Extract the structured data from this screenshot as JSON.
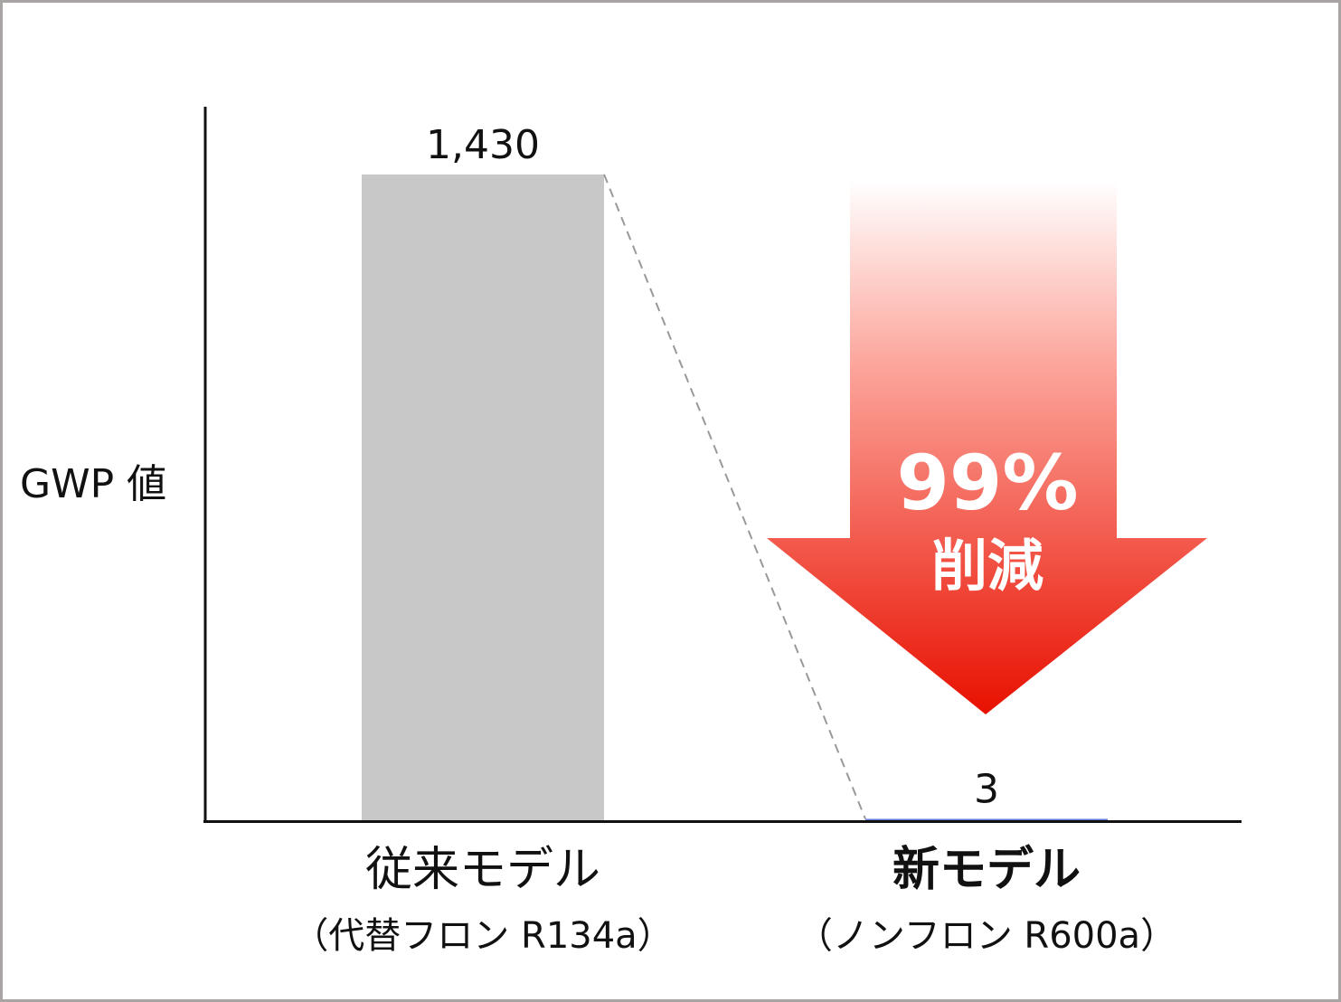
{
  "chart_data": {
    "type": "bar",
    "y_label": "GWP 値",
    "categories": [
      "従来モデル",
      "新モデル"
    ],
    "category_sublabels": [
      "（代替フロン R134a）",
      "（ノンフロン R600a）"
    ],
    "values": [
      1430,
      3
    ],
    "value_labels": [
      "1,430",
      "3"
    ],
    "colors": [
      "#c8c8c8",
      "#5f79d8"
    ],
    "ylim": [
      0,
      1580
    ],
    "annotation": {
      "text": "99%",
      "subtext": "削減"
    }
  }
}
